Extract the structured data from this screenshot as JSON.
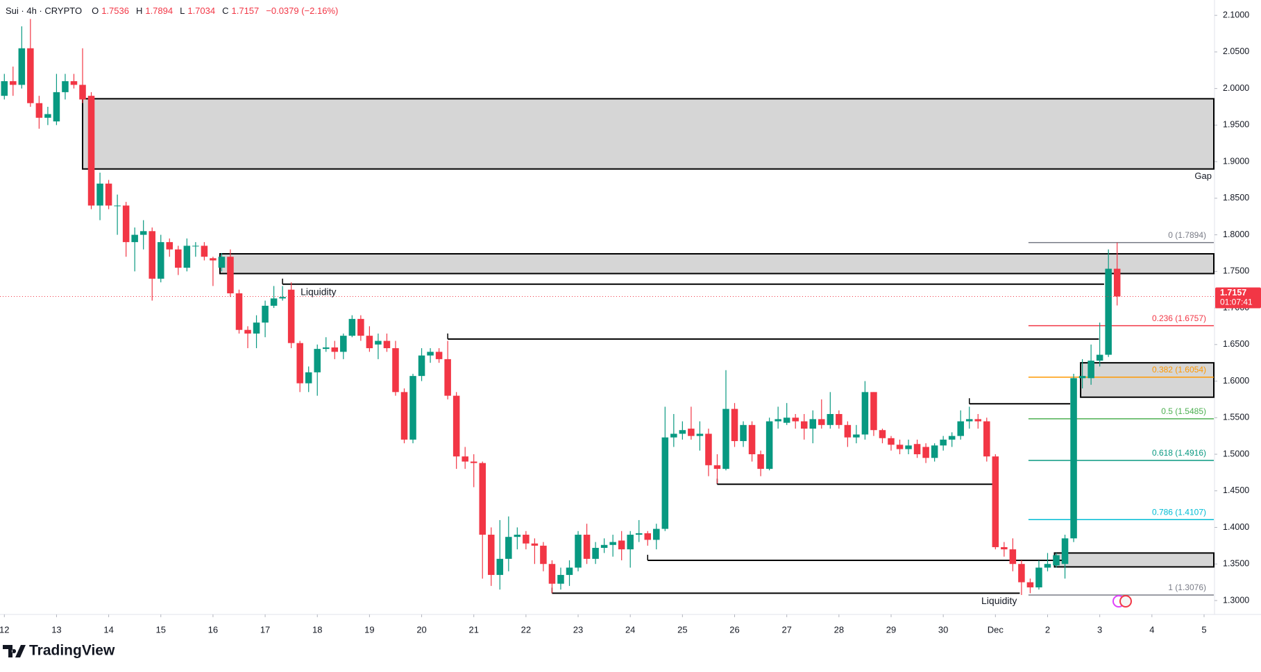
{
  "chart_data": {
    "type": "candlestick",
    "symbol": "Sui · 4h · CRYPTO",
    "ohlc_letters": [
      "O",
      "H",
      "L",
      "C"
    ],
    "change": "−0.0379 (−2.16%)",
    "countdown": "01:07:41",
    "watermark": "TradingView",
    "up_color": "#089981",
    "down_color": "#f23645",
    "grid": false,
    "xlim": [
      -0.5,
      139.2
    ],
    "ylim": [
      1.281,
      2.121
    ],
    "xticks": [
      {
        "value": 0,
        "label": "12"
      },
      {
        "value": 6,
        "label": "13"
      },
      {
        "value": 12,
        "label": "14"
      },
      {
        "value": 18,
        "label": "15"
      },
      {
        "value": 24,
        "label": "16"
      },
      {
        "value": 30,
        "label": "17"
      },
      {
        "value": 36,
        "label": "18"
      },
      {
        "value": 42,
        "label": "19"
      },
      {
        "value": 48,
        "label": "20"
      },
      {
        "value": 54,
        "label": "21"
      },
      {
        "value": 60,
        "label": "22"
      },
      {
        "value": 66,
        "label": "23"
      },
      {
        "value": 72,
        "label": "24"
      },
      {
        "value": 78,
        "label": "25"
      },
      {
        "value": 84,
        "label": "26"
      },
      {
        "value": 90,
        "label": "27"
      },
      {
        "value": 96,
        "label": "28"
      },
      {
        "value": 102,
        "label": "29"
      },
      {
        "value": 108,
        "label": "30"
      },
      {
        "value": 114,
        "label": "Dec"
      },
      {
        "value": 120,
        "label": "2"
      },
      {
        "value": 126,
        "label": "3"
      },
      {
        "value": 132,
        "label": "4"
      },
      {
        "value": 138,
        "label": "5"
      }
    ],
    "yticks": [
      {
        "value": 1.3,
        "label": "1.3000"
      },
      {
        "value": 1.35,
        "label": "1.3500"
      },
      {
        "value": 1.4,
        "label": "1.4000"
      },
      {
        "value": 1.45,
        "label": "1.4500"
      },
      {
        "value": 1.5,
        "label": "1.5000"
      },
      {
        "value": 1.55,
        "label": "1.5500"
      },
      {
        "value": 1.6,
        "label": "1.6000"
      },
      {
        "value": 1.65,
        "label": "1.6500"
      },
      {
        "value": 1.7,
        "label": "1.7000"
      },
      {
        "value": 1.75,
        "label": "1.7500"
      },
      {
        "value": 1.8,
        "label": "1.8000"
      },
      {
        "value": 1.85,
        "label": "1.8500"
      },
      {
        "value": 1.9,
        "label": "1.9000"
      },
      {
        "value": 1.95,
        "label": "1.9500"
      },
      {
        "value": 2.0,
        "label": "2.0000"
      },
      {
        "value": 2.05,
        "label": "2.0500"
      },
      {
        "value": 2.1,
        "label": "2.1000"
      }
    ],
    "open": [
      1.99,
      2.01,
      2.005,
      2.055,
      1.98,
      1.96,
      1.955,
      1.995,
      2.01,
      2.005,
      1.99,
      1.84,
      1.87,
      1.84,
      1.84,
      1.79,
      1.8,
      1.805,
      1.74,
      1.79,
      1.78,
      1.755,
      1.785,
      1.785,
      1.768,
      1.755,
      1.77,
      1.72,
      1.67,
      1.665,
      1.68,
      1.703,
      1.713,
      1.725,
      1.652,
      1.597,
      1.612,
      1.644,
      1.646,
      1.64,
      1.662,
      1.685,
      1.662,
      1.65,
      1.655,
      1.645,
      1.585,
      1.52,
      1.607,
      1.635,
      1.64,
      1.63,
      1.58,
      1.497,
      1.49,
      1.488,
      1.39,
      1.335,
      1.357,
      1.387,
      1.39,
      1.378,
      1.375,
      1.35,
      1.323,
      1.335,
      1.345,
      1.39,
      1.357,
      1.372,
      1.376,
      1.382,
      1.37,
      1.39,
      1.392,
      1.383,
      1.398,
      1.523,
      1.528,
      1.535,
      1.525,
      1.528,
      1.485,
      1.48,
      1.562,
      1.518,
      1.54,
      1.5,
      1.48,
      1.545,
      1.543,
      1.55,
      1.545,
      1.535,
      1.548,
      1.54,
      1.555,
      1.54,
      1.523,
      1.527,
      1.585,
      1.533,
      1.522,
      1.513,
      1.507,
      1.514,
      1.51,
      1.495,
      1.512,
      1.52,
      1.525,
      1.545,
      1.548,
      1.545,
      1.497,
      1.373,
      1.37,
      1.35,
      1.325,
      1.318,
      1.345,
      1.348,
      1.35,
      1.385,
      1.604,
      1.604,
      1.628,
      1.636,
      1.7536
    ],
    "high": [
      2.02,
      2.03,
      2.085,
      2.095,
      1.99,
      1.975,
      2.02,
      2.02,
      2.02,
      2.055,
      1.995,
      1.885,
      1.875,
      1.855,
      1.845,
      1.81,
      1.82,
      1.81,
      1.8,
      1.795,
      1.785,
      1.795,
      1.79,
      1.79,
      1.77,
      1.775,
      1.78,
      1.725,
      1.675,
      1.69,
      1.71,
      1.73,
      1.73,
      1.735,
      1.655,
      1.62,
      1.65,
      1.66,
      1.655,
      1.665,
      1.69,
      1.69,
      1.675,
      1.665,
      1.665,
      1.655,
      1.59,
      1.61,
      1.645,
      1.645,
      1.645,
      1.655,
      1.585,
      1.51,
      1.5,
      1.49,
      1.4,
      1.41,
      1.415,
      1.4,
      1.395,
      1.385,
      1.38,
      1.355,
      1.345,
      1.355,
      1.395,
      1.405,
      1.38,
      1.385,
      1.39,
      1.395,
      1.395,
      1.41,
      1.395,
      1.405,
      1.565,
      1.555,
      1.545,
      1.565,
      1.545,
      1.535,
      1.5,
      1.615,
      1.57,
      1.545,
      1.545,
      1.505,
      1.55,
      1.565,
      1.57,
      1.555,
      1.555,
      1.56,
      1.575,
      1.585,
      1.56,
      1.545,
      1.54,
      1.6,
      1.585,
      1.535,
      1.525,
      1.52,
      1.52,
      1.52,
      1.515,
      1.515,
      1.525,
      1.53,
      1.56,
      1.565,
      1.555,
      1.55,
      1.5,
      1.38,
      1.385,
      1.355,
      1.33,
      1.355,
      1.365,
      1.365,
      1.39,
      1.61,
      1.63,
      1.65,
      1.68,
      1.78,
      1.7894
    ],
    "low": [
      1.985,
      1.99,
      2.0,
      1.975,
      1.945,
      1.95,
      1.95,
      1.985,
      2.0,
      1.98,
      1.835,
      1.82,
      1.835,
      1.8,
      1.77,
      1.75,
      1.78,
      1.71,
      1.735,
      1.77,
      1.745,
      1.75,
      1.77,
      1.765,
      1.73,
      1.75,
      1.715,
      1.665,
      1.645,
      1.645,
      1.66,
      1.7,
      1.71,
      1.645,
      1.585,
      1.585,
      1.58,
      1.64,
      1.63,
      1.63,
      1.66,
      1.655,
      1.64,
      1.63,
      1.64,
      1.58,
      1.515,
      1.515,
      1.6,
      1.625,
      1.625,
      1.575,
      1.48,
      1.48,
      1.455,
      1.33,
      1.32,
      1.315,
      1.34,
      1.37,
      1.37,
      1.35,
      1.34,
      1.31,
      1.315,
      1.32,
      1.34,
      1.35,
      1.35,
      1.365,
      1.36,
      1.355,
      1.345,
      1.38,
      1.375,
      1.37,
      1.395,
      1.51,
      1.52,
      1.52,
      1.505,
      1.47,
      1.46,
      1.478,
      1.51,
      1.51,
      1.49,
      1.47,
      1.478,
      1.535,
      1.54,
      1.535,
      1.52,
      1.515,
      1.535,
      1.535,
      1.535,
      1.51,
      1.515,
      1.52,
      1.525,
      1.515,
      1.505,
      1.5,
      1.5,
      1.495,
      1.488,
      1.49,
      1.505,
      1.51,
      1.52,
      1.535,
      1.535,
      1.49,
      1.37,
      1.36,
      1.34,
      1.3076,
      1.31,
      1.315,
      1.34,
      1.345,
      1.33,
      1.38,
      1.59,
      1.595,
      1.62,
      1.633,
      1.7034
    ],
    "close": [
      2.01,
      2.005,
      2.055,
      1.98,
      1.96,
      1.965,
      1.995,
      2.01,
      2.005,
      1.985,
      1.84,
      1.87,
      1.84,
      1.84,
      1.79,
      1.8,
      1.805,
      1.74,
      1.79,
      1.78,
      1.755,
      1.785,
      1.785,
      1.77,
      1.765,
      1.77,
      1.72,
      1.67,
      1.665,
      1.68,
      1.703,
      1.713,
      1.715,
      1.652,
      1.597,
      1.612,
      1.644,
      1.646,
      1.64,
      1.662,
      1.685,
      1.662,
      1.645,
      1.655,
      1.645,
      1.585,
      1.52,
      1.607,
      1.635,
      1.64,
      1.63,
      1.58,
      1.497,
      1.49,
      1.488,
      1.39,
      1.335,
      1.357,
      1.387,
      1.39,
      1.378,
      1.375,
      1.35,
      1.323,
      1.335,
      1.345,
      1.39,
      1.357,
      1.372,
      1.376,
      1.38,
      1.37,
      1.39,
      1.392,
      1.383,
      1.398,
      1.523,
      1.528,
      1.533,
      1.525,
      1.528,
      1.485,
      1.48,
      1.562,
      1.518,
      1.54,
      1.5,
      1.48,
      1.545,
      1.548,
      1.55,
      1.545,
      1.535,
      1.548,
      1.54,
      1.555,
      1.54,
      1.523,
      1.527,
      1.585,
      1.533,
      1.522,
      1.513,
      1.507,
      1.512,
      1.5,
      1.495,
      1.512,
      1.52,
      1.525,
      1.545,
      1.548,
      1.545,
      1.497,
      1.373,
      1.37,
      1.35,
      1.325,
      1.318,
      1.345,
      1.35,
      1.362,
      1.385,
      1.604,
      1.607,
      1.628,
      1.636,
      1.7536,
      1.7157
    ],
    "zones": [
      {
        "label": "Gap",
        "x0": 9,
        "top": 1.986,
        "bottom": 1.89
      },
      {
        "x0": 24.8,
        "top": 1.774,
        "bottom": 1.747
      },
      {
        "x0": 123.8,
        "top": 1.625,
        "bottom": 1.578
      },
      {
        "x0": 120.8,
        "top": 1.365,
        "bottom": 1.346
      }
    ],
    "zone_color": "#d1d1d1",
    "levels": [
      {
        "price": 1.7325,
        "x0": 32,
        "x1": 126.5,
        "label": "Liquidity",
        "label_anchor": "start"
      },
      {
        "price": 1.6575,
        "x0": 51,
        "x1": 125.9
      },
      {
        "price": 1.569,
        "x0": 111,
        "x1": 122.6
      },
      {
        "price": 1.459,
        "x0": 82,
        "x1": 113.8
      },
      {
        "price": 1.355,
        "x0": 74,
        "x1": 121.8
      },
      {
        "price": 1.31,
        "x0": 63,
        "x1": 116.8,
        "label": "Liquidity",
        "label_anchor": "end"
      }
    ],
    "fib": {
      "x0": 117.8,
      "levels": [
        {
          "value": 1.7894,
          "label": "0 (1.7894)",
          "color": "#787b86"
        },
        {
          "value": 1.6757,
          "label": "0.236 (1.6757)",
          "color": "#f23645"
        },
        {
          "value": 1.6054,
          "label": "0.382 (1.6054)",
          "color": "#ff9800"
        },
        {
          "value": 1.5485,
          "label": "0.5 (1.5485)",
          "color": "#4caf50"
        },
        {
          "value": 1.4916,
          "label": "0.618 (1.4916)",
          "color": "#089981"
        },
        {
          "value": 1.4107,
          "label": "0.786 (1.4107)",
          "color": "#00bcd4"
        },
        {
          "value": 1.3076,
          "label": "1 (1.3076)",
          "color": "#787b86"
        }
      ]
    }
  }
}
